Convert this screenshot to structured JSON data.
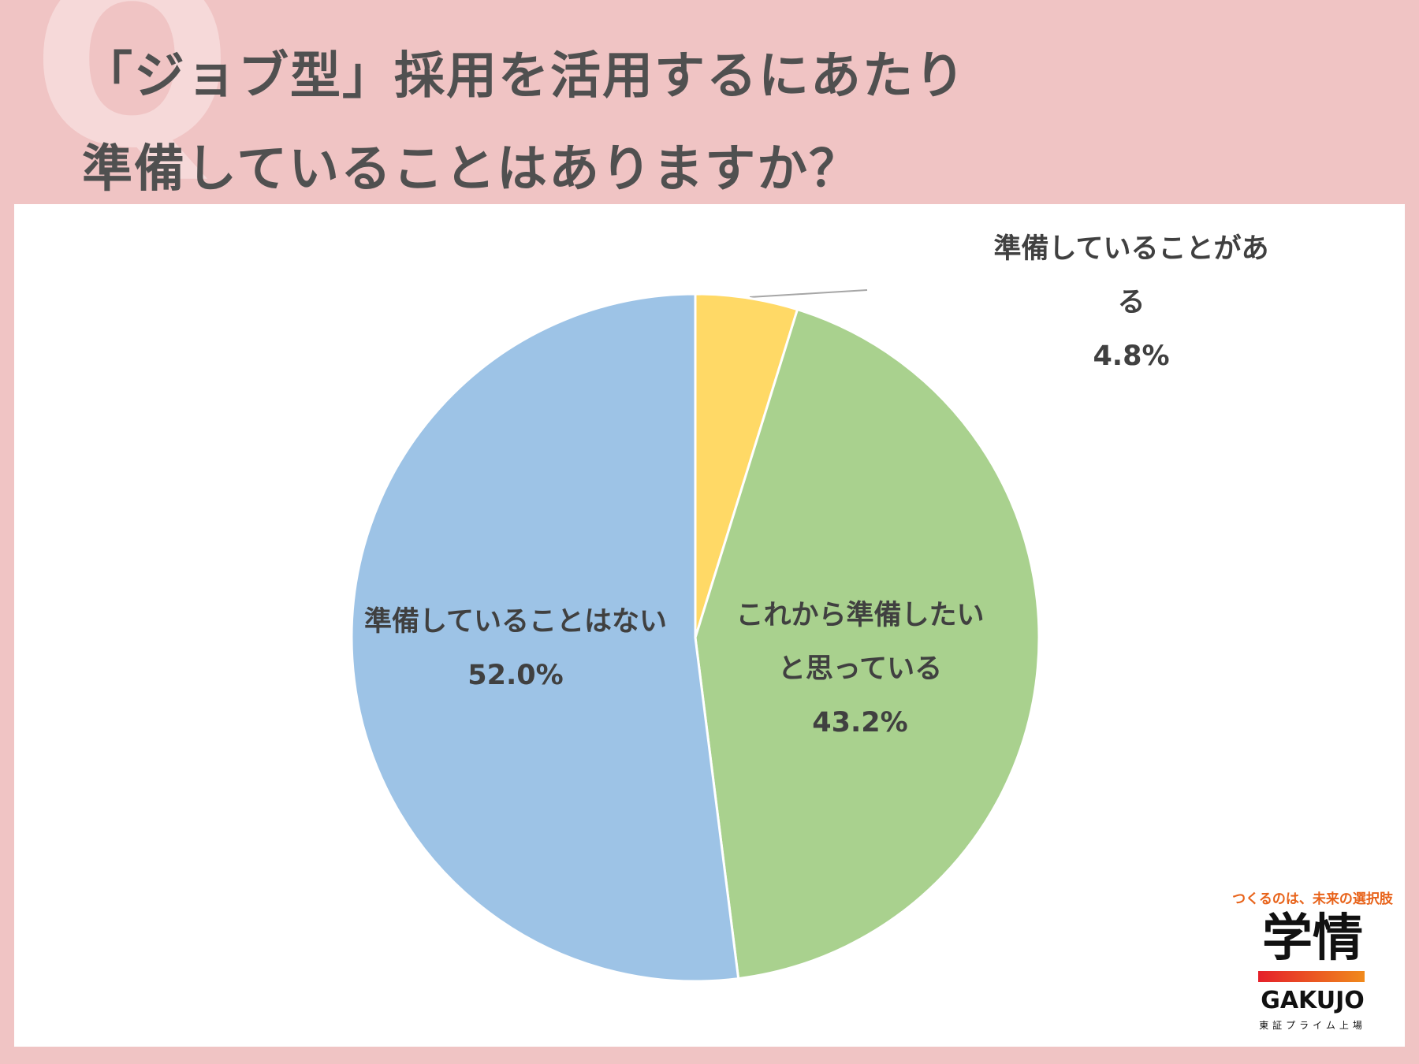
{
  "chart_data": {
    "type": "pie",
    "title": "「ジョブ型」採用を活用するにあたり\n準備していることはありますか？",
    "categories": [
      "準備していることがある",
      "これから準備したい\nと思っている",
      "準備していることはない"
    ],
    "values": [
      4.8,
      43.2,
      52.0
    ],
    "value_labels": [
      "4.8%",
      "43.2%",
      "52.0%"
    ],
    "colors": [
      "#ffd966",
      "#a9d18e",
      "#9dc3e6"
    ]
  },
  "logo": {
    "tagline": "つくるのは、未来の選択肢",
    "name": "学情",
    "latin": "GAKUJO",
    "listing": "東証プライム上場"
  }
}
